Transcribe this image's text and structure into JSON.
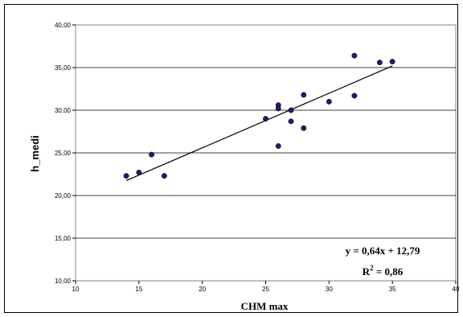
{
  "chart_data": {
    "type": "scatter",
    "title": "",
    "xlabel": "CHM max",
    "ylabel": "h_medi",
    "xlim": [
      10,
      40
    ],
    "ylim": [
      10,
      40
    ],
    "x_ticks": [
      "10",
      "15",
      "20",
      "25",
      "30",
      "35",
      "40"
    ],
    "y_ticks": [
      "10,00",
      "15,00",
      "20,00",
      "25,00",
      "30,00",
      "35,00",
      "40,00"
    ],
    "grid": "horizontal",
    "point_color": "#1a1f6e",
    "points": [
      {
        "x": 14,
        "y": 22.3
      },
      {
        "x": 15,
        "y": 22.7
      },
      {
        "x": 16,
        "y": 24.8
      },
      {
        "x": 17,
        "y": 22.3
      },
      {
        "x": 25,
        "y": 29.0
      },
      {
        "x": 26,
        "y": 30.6
      },
      {
        "x": 26,
        "y": 30.2
      },
      {
        "x": 26,
        "y": 25.8
      },
      {
        "x": 27,
        "y": 30.0
      },
      {
        "x": 27,
        "y": 28.7
      },
      {
        "x": 28,
        "y": 31.8
      },
      {
        "x": 28,
        "y": 27.9
      },
      {
        "x": 30,
        "y": 31.0
      },
      {
        "x": 32,
        "y": 36.4
      },
      {
        "x": 32,
        "y": 31.7
      },
      {
        "x": 34,
        "y": 35.6
      },
      {
        "x": 35,
        "y": 35.7
      }
    ],
    "trendline": {
      "slope": 0.64,
      "intercept": 12.79,
      "x_from": 14,
      "x_to": 35
    },
    "equation_label": "y = 0,64x + 12,79",
    "r2_label_main": "R",
    "r2_label_sup": "2",
    "r2_label_value": " = 0,86"
  }
}
